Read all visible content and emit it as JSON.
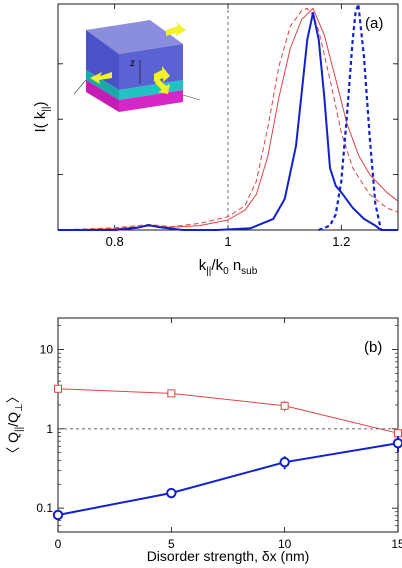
{
  "chart_data": [
    {
      "type": "line",
      "panel_label": "(a)",
      "xlabel": "k",
      "xlabel_sub": "||",
      "xlabel_rest": "/k",
      "xlabel_sub2": "0",
      "xlabel_n": "n",
      "xlabel_sub3": "sub",
      "ylabel": "I( k",
      "ylabel_sub": "||",
      "ylabel_close": ")",
      "xlim": [
        0.7,
        1.3
      ],
      "ylim": [
        0,
        1.02
      ],
      "xticks": [
        0.8,
        1.0,
        1.2
      ],
      "xtick_labels": [
        "0.8",
        "1",
        "1.2"
      ],
      "yticks": [
        0.25,
        0.5,
        0.75
      ],
      "vline_x": 1.0,
      "inset_axis_label": "z",
      "series": [
        {
          "color": "#dd4444",
          "style": "dashed",
          "width": 1.0,
          "x": [
            0.7,
            0.8,
            0.86,
            0.9,
            0.95,
            1.0,
            1.03,
            1.05,
            1.07,
            1.09,
            1.11,
            1.13,
            1.14,
            1.15,
            1.16,
            1.18,
            1.2,
            1.22,
            1.25,
            1.28,
            1.3
          ],
          "y": [
            0.0,
            0.01,
            0.025,
            0.015,
            0.03,
            0.06,
            0.11,
            0.22,
            0.46,
            0.74,
            0.92,
            0.99,
            1.0,
            0.97,
            0.9,
            0.68,
            0.44,
            0.28,
            0.16,
            0.1,
            0.08
          ]
        },
        {
          "color": "#dd4444",
          "style": "solid",
          "width": 1.0,
          "x": [
            0.7,
            0.8,
            0.86,
            0.9,
            0.95,
            1.0,
            1.03,
            1.05,
            1.07,
            1.09,
            1.11,
            1.13,
            1.15,
            1.17,
            1.19,
            1.21,
            1.23,
            1.25,
            1.28,
            1.3
          ],
          "y": [
            0.0,
            0.006,
            0.018,
            0.012,
            0.02,
            0.045,
            0.09,
            0.16,
            0.33,
            0.6,
            0.82,
            0.95,
            1.0,
            0.88,
            0.68,
            0.48,
            0.34,
            0.25,
            0.17,
            0.13
          ]
        },
        {
          "color": "#1122cc",
          "style": "solid",
          "width": 2.0,
          "x": [
            0.7,
            0.8,
            0.84,
            0.86,
            0.88,
            0.92,
            0.98,
            1.04,
            1.08,
            1.1,
            1.12,
            1.13,
            1.14,
            1.15,
            1.16,
            1.17,
            1.18,
            1.19,
            1.2,
            1.22,
            1.24,
            1.26,
            1.27,
            1.3
          ],
          "y": [
            0.0,
            0.0,
            0.01,
            0.022,
            0.012,
            0.0,
            0.0,
            0.008,
            0.05,
            0.14,
            0.38,
            0.62,
            0.86,
            0.98,
            0.86,
            0.6,
            0.28,
            0.2,
            0.17,
            0.1,
            0.05,
            0.02,
            0.0,
            0.0
          ]
        },
        {
          "color": "#1122cc",
          "style": "dotted",
          "width": 2.2,
          "x": [
            1.16,
            1.18,
            1.19,
            1.2,
            1.21,
            1.22,
            1.225,
            1.23,
            1.24,
            1.25,
            1.26,
            1.27
          ],
          "y": [
            0.0,
            0.02,
            0.07,
            0.22,
            0.52,
            0.86,
            0.98,
            1.02,
            0.78,
            0.42,
            0.12,
            0.0
          ]
        }
      ]
    },
    {
      "type": "line",
      "panel_label": "(b)",
      "xlabel": "Disorder strength, δx (nm)",
      "ylabel": "〈 Q",
      "ylabel_sub1": "||",
      "ylabel_mid": "/Q",
      "ylabel_sub2": "⊥",
      "ylabel_close": "〉",
      "yscale": "log",
      "xlim": [
        0,
        15
      ],
      "ylim": [
        0.05,
        25
      ],
      "xticks": [
        0,
        5,
        10,
        15
      ],
      "xtick_labels": [
        "0",
        "5",
        "10",
        "15"
      ],
      "yticks": [
        0.1,
        1,
        10
      ],
      "ytick_labels": [
        "0.1",
        "1",
        "10"
      ],
      "hline_y": 1,
      "series": [
        {
          "color": "#dd4444",
          "marker": "square",
          "width": 1.0,
          "x": [
            0,
            5,
            10,
            15
          ],
          "y": [
            3.2,
            2.8,
            1.95,
            0.88
          ],
          "err": [
            0,
            0.15,
            0.3,
            0.15
          ]
        },
        {
          "color": "#1122cc",
          "marker": "circle",
          "width": 2.0,
          "x": [
            0,
            5,
            10,
            15
          ],
          "y": [
            0.082,
            0.155,
            0.38,
            0.66
          ],
          "err": [
            0,
            0.012,
            0.07,
            0.15
          ]
        }
      ]
    }
  ]
}
